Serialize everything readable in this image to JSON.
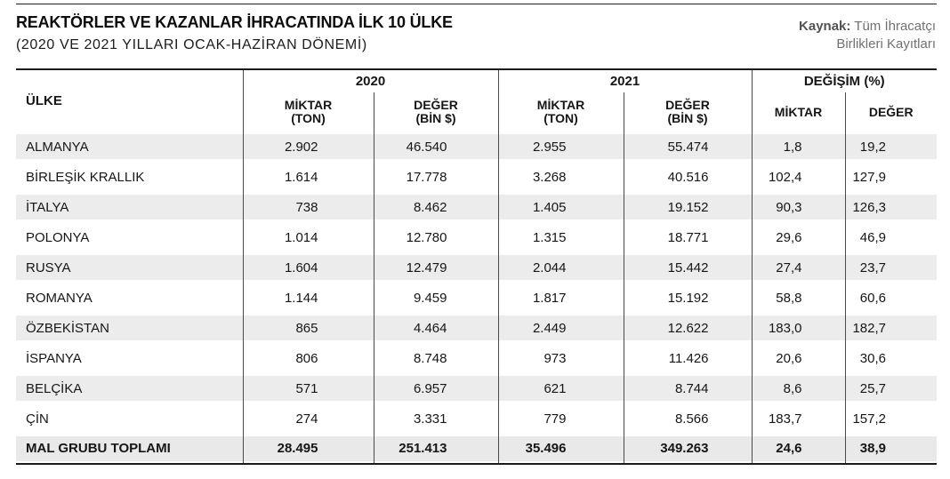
{
  "page": {
    "title": "REAKTÖRLER VE KAZANLAR İHRACATINDA İLK 10 ÜLKE",
    "subtitle": "(2020 VE 2021 YILLARI OCAK-HAZİRAN DÖNEMİ)",
    "source": {
      "label": "Kaynak:",
      "line1": "Tüm İhracatçı",
      "line2": "Birlikleri Kayıtları"
    }
  },
  "table": {
    "country_header": "ÜLKE",
    "groups": [
      "2020",
      "2021",
      "DEĞİŞİM (%)"
    ],
    "sub_headers": [
      [
        "MİKTAR",
        "(TON)"
      ],
      [
        "DEĞER",
        "(BİN $)"
      ],
      [
        "MİKTAR",
        "(TON)"
      ],
      [
        "DEĞER",
        "(BİN $)"
      ],
      [
        "MİKTAR"
      ],
      [
        "DEĞER"
      ]
    ],
    "rows": [
      [
        "ALMANYA",
        "2.902",
        "46.540",
        "2.955",
        "55.474",
        "1,8",
        "19,2"
      ],
      [
        "BİRLEŞİK KRALLIK",
        "1.614",
        "17.778",
        "3.268",
        "40.516",
        "102,4",
        "127,9"
      ],
      [
        "İTALYA",
        "738",
        "8.462",
        "1.405",
        "19.152",
        "90,3",
        "126,3"
      ],
      [
        "POLONYA",
        "1.014",
        "12.780",
        "1.315",
        "18.771",
        "29,6",
        "46,9"
      ],
      [
        "RUSYA",
        "1.604",
        "12.479",
        "2.044",
        "15.442",
        "27,4",
        "23,7"
      ],
      [
        "ROMANYA",
        "1.144",
        "9.459",
        "1.817",
        "15.192",
        "58,8",
        "60,6"
      ],
      [
        "ÖZBEKİSTAN",
        "865",
        "4.464",
        "2.449",
        "12.622",
        "183,0",
        "182,7"
      ],
      [
        "İSPANYA",
        "806",
        "8.748",
        "973",
        "11.426",
        "20,6",
        "30,6"
      ],
      [
        "BELÇİKA",
        "571",
        "6.957",
        "621",
        "8.744",
        "8,6",
        "25,7"
      ],
      [
        "ÇİN",
        "274",
        "3.331",
        "779",
        "8.566",
        "183,7",
        "157,2"
      ]
    ],
    "total": [
      "MAL GRUBU TOPLAMI",
      "28.495",
      "251.413",
      "35.496",
      "349.263",
      "24,6",
      "38,9"
    ]
  },
  "colors": {
    "stripe": "#ececec",
    "total_row_bg": "#e9e9e9",
    "rule": "#1b1b1b",
    "divider": "#4a4a4a",
    "source_text": "#717174",
    "source_label": "#535355"
  },
  "chart_data": {
    "type": "table",
    "title": "REAKTÖRLER VE KAZANLAR İHRACATINDA İLK 10 ÜLKE",
    "subtitle": "(2020 VE 2021 YILLARI OCAK-HAZİRAN DÖNEMİ)",
    "source": "Kaynak: Tüm İhracatçı Birlikleri Kayıtları",
    "columns": [
      "ÜLKE",
      "2020 MİKTAR (TON)",
      "2020 DEĞER (BİN $)",
      "2021 MİKTAR (TON)",
      "2021 DEĞER (BİN $)",
      "DEĞİŞİM MİKTAR (%)",
      "DEĞİŞİM DEĞER (%)"
    ],
    "rows": [
      [
        "ALMANYA",
        2902,
        46540,
        2955,
        55474,
        1.8,
        19.2
      ],
      [
        "BİRLEŞİK KRALLIK",
        1614,
        17778,
        3268,
        40516,
        102.4,
        127.9
      ],
      [
        "İTALYA",
        738,
        8462,
        1405,
        19152,
        90.3,
        126.3
      ],
      [
        "POLONYA",
        1014,
        12780,
        1315,
        18771,
        29.6,
        46.9
      ],
      [
        "RUSYA",
        1604,
        12479,
        2044,
        15442,
        27.4,
        23.7
      ],
      [
        "ROMANYA",
        1144,
        9459,
        1817,
        15192,
        58.8,
        60.6
      ],
      [
        "ÖZBEKİSTAN",
        865,
        4464,
        2449,
        12622,
        183.0,
        182.7
      ],
      [
        "İSPANYA",
        806,
        8748,
        973,
        11426,
        20.6,
        30.6
      ],
      [
        "BELÇİKA",
        571,
        6957,
        621,
        8744,
        8.6,
        25.7
      ],
      [
        "ÇİN",
        274,
        3331,
        779,
        8566,
        183.7,
        157.2
      ]
    ],
    "total_row": [
      "MAL GRUBU TOPLAMI",
      28495,
      251413,
      35496,
      349263,
      24.6,
      38.9
    ]
  }
}
